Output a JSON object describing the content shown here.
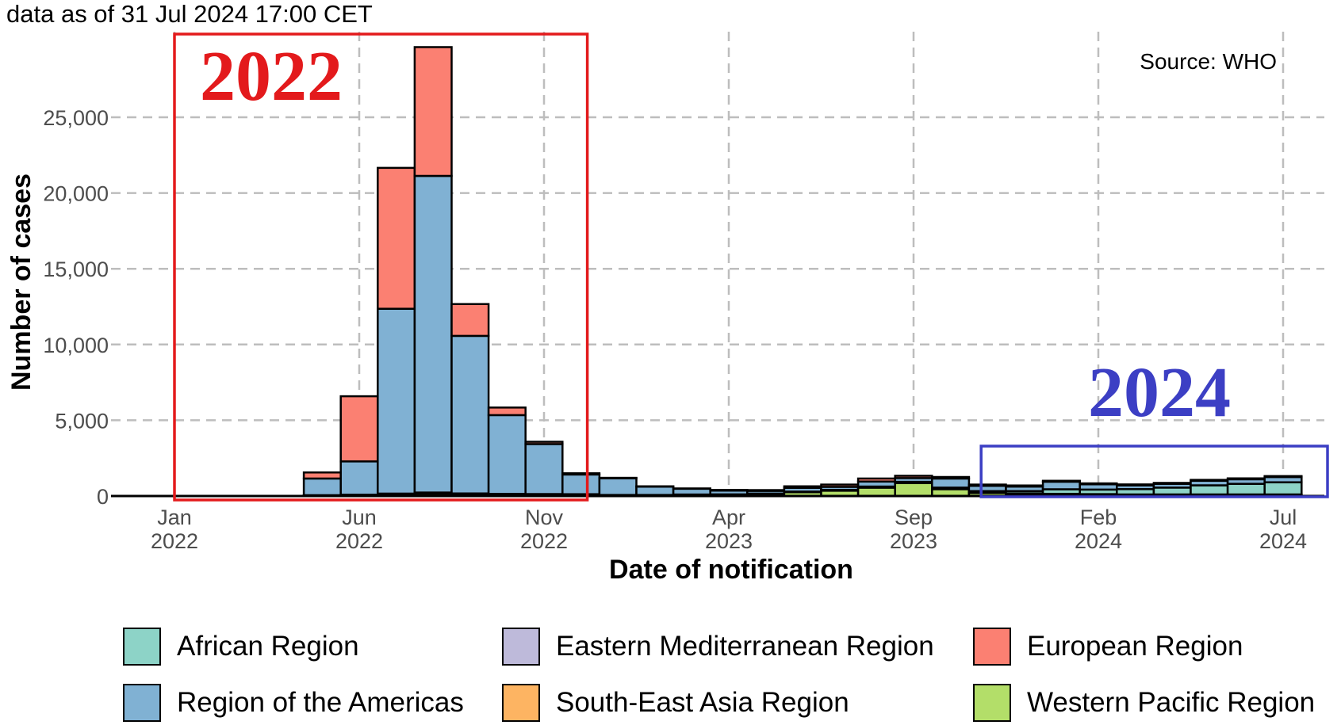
{
  "chart_data": {
    "type": "bar",
    "stacked": true,
    "subtitle": "data as of 31 Jul 2024 17:00 CET",
    "caption": "Source: WHO",
    "xlabel": "Date of notification",
    "ylabel": "Number of cases",
    "ylim": [
      0,
      29500
    ],
    "yticks": [
      0,
      5000,
      10000,
      15000,
      20000,
      25000
    ],
    "ytick_labels": [
      "0",
      "5,000",
      "10,000",
      "15,000",
      "20,000",
      "25,000"
    ],
    "xticks": [
      {
        "line1": "Jan",
        "line2": "2022",
        "month_index": 0
      },
      {
        "line1": "Jun",
        "line2": "2022",
        "month_index": 5
      },
      {
        "line1": "Nov",
        "line2": "2022",
        "month_index": 10
      },
      {
        "line1": "Apr",
        "line2": "2023",
        "month_index": 15
      },
      {
        "line1": "Sep",
        "line2": "2023",
        "month_index": 20
      },
      {
        "line1": "Feb",
        "line2": "2024",
        "month_index": 25
      },
      {
        "line1": "Jul",
        "line2": "2024",
        "month_index": 30
      }
    ],
    "grid": true,
    "legend_position": "bottom",
    "categories": [
      "2022-05",
      "2022-06",
      "2022-07",
      "2022-08",
      "2022-09",
      "2022-10",
      "2022-11",
      "2022-12",
      "2023-01",
      "2023-02",
      "2023-03",
      "2023-04",
      "2023-05",
      "2023-06",
      "2023-07",
      "2023-08",
      "2023-09",
      "2023-10",
      "2023-11",
      "2023-12",
      "2024-01",
      "2024-02",
      "2024-03",
      "2024-04",
      "2024-05",
      "2024-06",
      "2024-07"
    ],
    "first_month_index": 4,
    "series": [
      {
        "name": "African Region",
        "color": "#8DD3C7",
        "values": [
          20,
          20,
          30,
          40,
          40,
          50,
          60,
          60,
          40,
          40,
          30,
          30,
          30,
          30,
          40,
          50,
          60,
          80,
          100,
          150,
          300,
          300,
          350,
          450,
          600,
          700,
          800
        ]
      },
      {
        "name": "Eastern Mediterranean Region",
        "color": "#BEBADA",
        "values": [
          10,
          10,
          20,
          20,
          10,
          10,
          10,
          10,
          5,
          5,
          5,
          5,
          5,
          5,
          5,
          5,
          5,
          5,
          5,
          5,
          5,
          5,
          5,
          5,
          5,
          5,
          5
        ]
      },
      {
        "name": "European Region",
        "color": "#FB8072",
        "values": [
          400,
          4300,
          9300,
          8500,
          2100,
          500,
          150,
          80,
          30,
          20,
          20,
          40,
          50,
          100,
          150,
          200,
          150,
          100,
          80,
          70,
          60,
          60,
          60,
          60,
          60,
          60,
          60
        ]
      },
      {
        "name": "Region of the Americas",
        "color": "#80B1D3",
        "values": [
          1100,
          2200,
          12200,
          20900,
          10400,
          5200,
          3300,
          1300,
          1100,
          550,
          380,
          250,
          180,
          250,
          200,
          330,
          250,
          600,
          350,
          300,
          500,
          350,
          250,
          250,
          300,
          300,
          350
        ]
      },
      {
        "name": "South-East Asia Region",
        "color": "#FDB462",
        "values": [
          5,
          5,
          10,
          20,
          20,
          20,
          10,
          10,
          5,
          5,
          5,
          5,
          5,
          5,
          10,
          20,
          20,
          20,
          20,
          20,
          20,
          20,
          20,
          20,
          20,
          20,
          20
        ]
      },
      {
        "name": "Western Pacific Region",
        "color": "#B3DE69",
        "values": [
          20,
          50,
          100,
          150,
          100,
          60,
          50,
          40,
          20,
          20,
          60,
          70,
          120,
          250,
          350,
          550,
          850,
          450,
          200,
          150,
          120,
          100,
          80,
          80,
          80,
          80,
          80
        ]
      }
    ],
    "annotations": [
      {
        "text": "2022",
        "color": "#E31A1C",
        "highlights_month_range": [
          0,
          11
        ]
      },
      {
        "text": "2024",
        "color": "#3C3FC4",
        "highlights_month_range": [
          22,
          31
        ]
      }
    ]
  }
}
